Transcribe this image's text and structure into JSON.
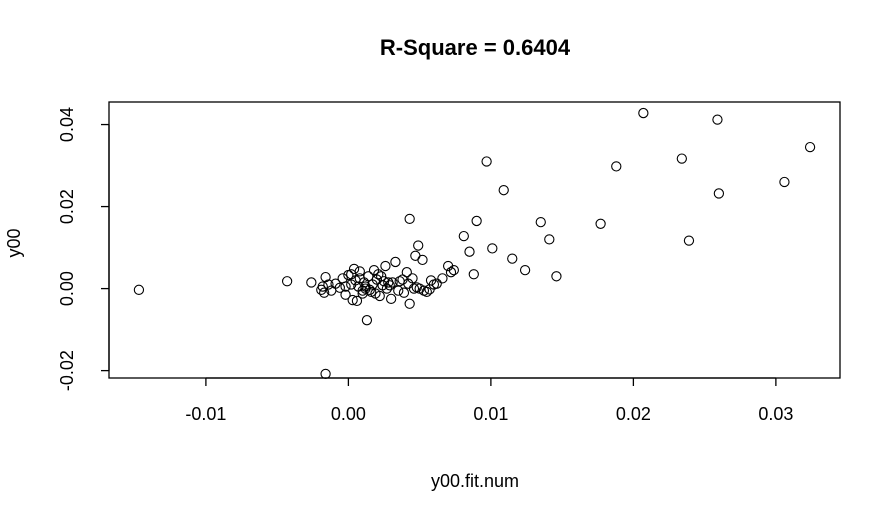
{
  "chart_data": {
    "type": "scatter",
    "title": "R-Square = 0.6404",
    "xlabel": "y00.fit.num",
    "ylabel": "y00",
    "xlim": [
      -0.0168,
      0.0345
    ],
    "ylim": [
      -0.0218,
      0.0455
    ],
    "x_ticks": [
      {
        "value": -0.01,
        "label": "-0.01"
      },
      {
        "value": 0.0,
        "label": "0.00"
      },
      {
        "value": 0.01,
        "label": "0.01"
      },
      {
        "value": 0.02,
        "label": "0.02"
      },
      {
        "value": 0.03,
        "label": "0.03"
      }
    ],
    "y_ticks": [
      {
        "value": -0.02,
        "label": "-0.02"
      },
      {
        "value": 0.0,
        "label": "0.00"
      },
      {
        "value": 0.02,
        "label": "0.02"
      },
      {
        "value": 0.04,
        "label": "0.04"
      }
    ],
    "grid": false,
    "marker": "open-circle",
    "x": [
      -0.0147,
      -0.0043,
      -0.0026,
      -0.0019,
      -0.0017,
      -0.0016,
      -0.0014,
      -0.0012,
      -0.0009,
      -0.0006,
      -0.0004,
      -0.0002,
      0.0,
      0.0002,
      0.0004,
      0.0006,
      0.0008,
      0.001,
      0.0012,
      0.0014,
      0.0016,
      0.0018,
      0.002,
      0.0022,
      0.0024,
      0.0026,
      0.0028,
      0.003,
      0.0033,
      0.0036,
      0.0039,
      0.0041,
      0.0043,
      0.0045,
      0.0047,
      0.0049,
      0.0052,
      0.0055,
      0.0058,
      0.0062,
      0.0066,
      0.007,
      0.0074,
      0.0081,
      0.0085,
      0.0088,
      0.009,
      0.0097,
      0.0101,
      0.0109,
      0.0115,
      0.0124,
      0.0135,
      0.0141,
      0.0146,
      0.0177,
      0.0188,
      0.0207,
      0.0234,
      0.0239,
      0.0259,
      0.026,
      0.0306,
      0.0324,
      -0.0016,
      0.0013,
      0.0043,
      -0.0002,
      0.0005,
      0.001,
      0.0017,
      0.0023,
      0.0027,
      0.0031,
      0.0035,
      0.0008,
      0.0015,
      0.0029,
      0.0042,
      0.005,
      -0.0018,
      0.0003,
      0.0012,
      0.0021,
      0.0046,
      0.0053,
      0.006,
      0.0072,
      0.0007,
      0.0019,
      0.0025,
      0.0038,
      0.0048,
      0.0057,
      0.0011,
      0.0002
    ],
    "y": [
      -0.0003,
      0.0018,
      0.0015,
      -0.0003,
      -0.001,
      0.0028,
      0.001,
      -0.0005,
      0.0012,
      0.0002,
      0.0025,
      -0.0015,
      0.0033,
      0.001,
      0.0048,
      -0.003,
      0.0042,
      -0.0012,
      0.0005,
      0.003,
      -0.0008,
      0.0045,
      0.0022,
      -0.0018,
      0.0008,
      0.0055,
      0.0015,
      -0.0025,
      0.0065,
      0.0018,
      -0.001,
      0.004,
      0.017,
      0.0025,
      0.008,
      0.0105,
      0.007,
      -0.0008,
      0.002,
      0.0012,
      0.0025,
      0.0055,
      0.0045,
      0.0128,
      0.009,
      0.0035,
      0.0165,
      0.031,
      0.0098,
      0.024,
      0.0073,
      0.0045,
      0.0162,
      0.012,
      0.003,
      0.0158,
      0.0298,
      0.0428,
      0.0317,
      0.0117,
      0.0412,
      0.0232,
      0.026,
      0.0345,
      -0.0208,
      -0.0077,
      -0.0037,
      0.0005,
      0.002,
      -0.0005,
      0.001,
      0.003,
      0.0,
      0.0015,
      -0.0005,
      0.0025,
      -0.0003,
      0.0008,
      0.0012,
      0.0,
      0.0005,
      -0.0028,
      0.0,
      0.0035,
      0.0,
      -0.0005,
      0.001,
      0.004,
      0.0005,
      -0.0012,
      0.0018,
      0.0022,
      0.0003,
      -0.0002,
      0.0015,
      0.0035
    ]
  }
}
